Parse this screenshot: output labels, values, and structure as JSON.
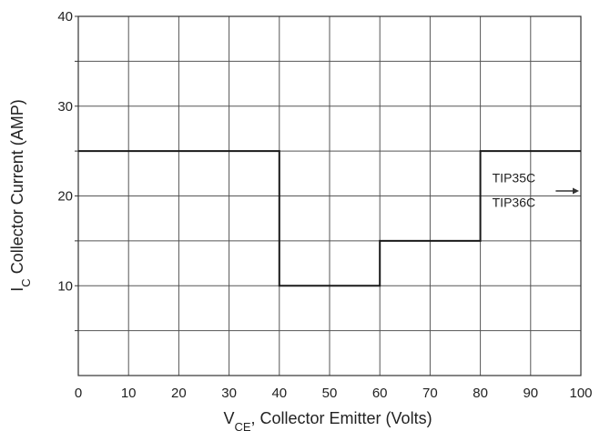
{
  "chart_data": {
    "type": "line",
    "title": "",
    "xlabel": {
      "main": "V",
      "sub": "CE",
      "rest": ", Collector Emitter (Volts)"
    },
    "ylabel": {
      "main": "I",
      "sub": "C",
      "rest": " Collector Current (AMP)"
    },
    "xlim": [
      0,
      100
    ],
    "ylim": [
      0,
      40
    ],
    "x_ticks": [
      0,
      10,
      20,
      30,
      40,
      50,
      60,
      70,
      80,
      90,
      100
    ],
    "y_ticks": [
      10,
      20,
      30,
      40
    ],
    "grid": true,
    "series": [
      {
        "points": [
          [
            0,
            25
          ],
          [
            40,
            25
          ],
          [
            40,
            10
          ],
          [
            60,
            10
          ],
          [
            60,
            15
          ],
          [
            80,
            15
          ],
          [
            80,
            25
          ],
          [
            100,
            25
          ]
        ]
      }
    ],
    "annotations": [
      {
        "text": "TIP35C",
        "x": 82,
        "y": 21.5
      },
      {
        "text": "TIP36C",
        "x": 82,
        "y": 18.8
      }
    ],
    "colors": {
      "grid": "#555555",
      "curve": "#1a1a1a",
      "text": "#222222"
    }
  }
}
